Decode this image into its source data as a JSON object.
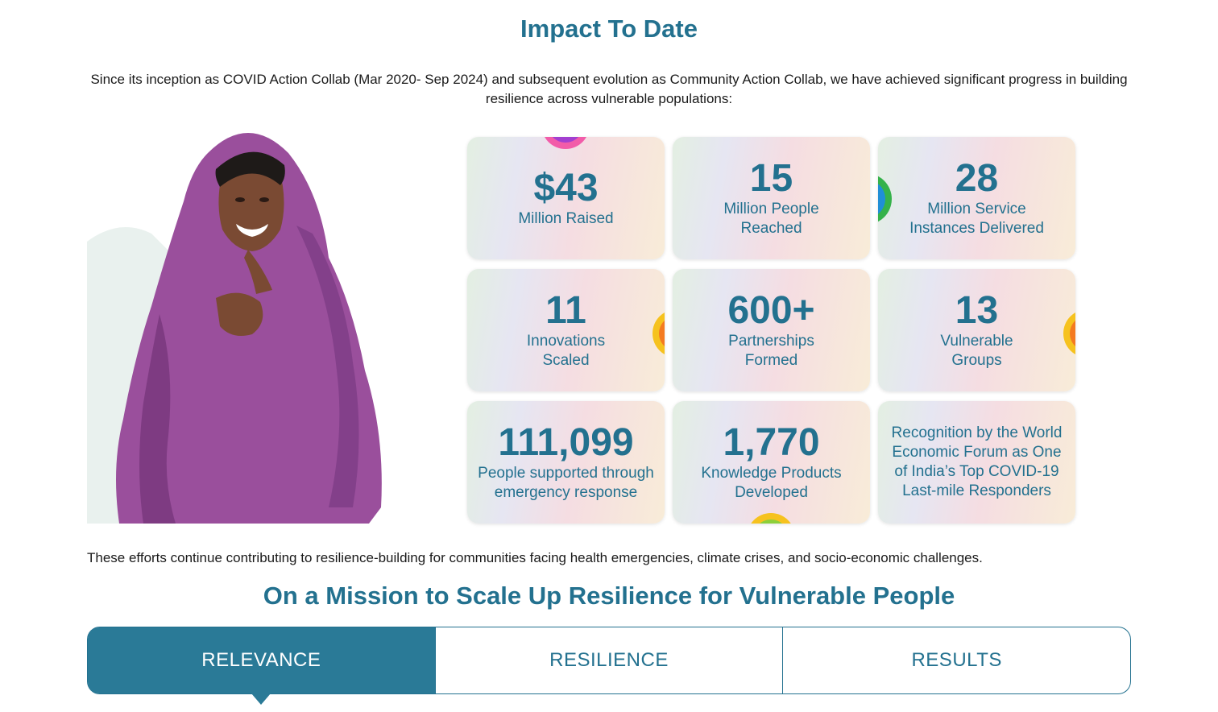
{
  "impact": {
    "title": "Impact To Date",
    "intro": "Since its inception as COVID Action Collab (Mar 2020- Sep 2024) and subsequent evolution as Community Action Collab, we have achieved significant progress in building resilience across vulnerable populations:",
    "stats": [
      {
        "value": "$43",
        "label": "Million Raised"
      },
      {
        "value": "15",
        "label": "Million People Reached"
      },
      {
        "value": "28",
        "label": "Million Service Instances Delivered"
      },
      {
        "value": "11",
        "label": "Innovations Scaled"
      },
      {
        "value": "600+",
        "label": "Partnerships Formed"
      },
      {
        "value": "13",
        "label": "Vulnerable Groups"
      },
      {
        "value": "111,099",
        "label": "People supported through emergency response"
      },
      {
        "value": "1,770",
        "label": "Knowledge Products Developed"
      },
      {
        "value": "",
        "label": "Recognition by the World Economic Forum as One of India’s Top COVID-19 Last-mile Responders"
      }
    ],
    "closing": "These efforts continue contributing to resilience-building for communities facing health emergencies, climate crises, and socio-economic challenges."
  },
  "mission": {
    "title": "On a Mission to Scale Up Resilience for Vulnerable People",
    "tabs": [
      {
        "label": "RELEVANCE",
        "active": true
      },
      {
        "label": "RESILIENCE",
        "active": false
      },
      {
        "label": "RESULTS",
        "active": false
      }
    ]
  },
  "colors": {
    "accent": "#23718f",
    "active_tab": "#2a7a97",
    "scarf": "#9a4f9c"
  }
}
